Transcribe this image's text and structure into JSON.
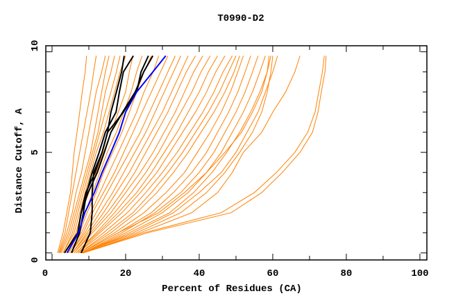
{
  "chart_data": {
    "type": "line",
    "title": "T0990-D2",
    "xlabel": "Percent of Residues (CA)",
    "ylabel": "Distance Cutoff, A",
    "xlim": [
      -1.7,
      101.9
    ],
    "ylim": [
      -0.35,
      10.3
    ],
    "xticks": [
      0,
      20,
      40,
      60,
      80,
      100
    ],
    "yticks": [
      0,
      5,
      10
    ],
    "grid": false,
    "colors": {
      "other_models": "#ff8000",
      "highlight_black": "#000000",
      "highlight_blue": "#0000ff"
    },
    "cutoffs": [
      0,
      1,
      2,
      3,
      4,
      5,
      6,
      7,
      8,
      9,
      9.8
    ],
    "orange_series": [
      [
        1.5,
        3,
        4,
        5,
        5.5,
        6,
        6.8,
        7.5,
        8.2,
        9,
        9.4
      ],
      [
        1.8,
        3.5,
        4.5,
        5.5,
        6.5,
        7.5,
        8.5,
        9.5,
        10.5,
        11.3,
        12
      ],
      [
        2,
        4,
        5.5,
        6.5,
        8,
        9,
        10,
        11,
        12,
        13.5,
        14.5
      ],
      [
        2.2,
        4.5,
        6,
        7.5,
        9,
        10.5,
        11.5,
        12.5,
        13.5,
        14.5,
        15.5
      ],
      [
        2.5,
        5,
        6.5,
        8,
        9.5,
        11,
        12.5,
        13.5,
        14.5,
        16,
        17
      ],
      [
        3,
        5.5,
        7,
        8.5,
        10,
        11.5,
        13,
        14.5,
        16,
        17.5,
        18.5
      ],
      [
        3,
        6,
        7.5,
        9,
        10.5,
        12,
        14,
        15.5,
        17,
        18.5,
        20
      ],
      [
        3.5,
        6.5,
        8,
        10,
        12,
        14,
        16,
        18,
        20,
        21,
        22
      ],
      [
        4,
        7,
        9,
        11,
        13,
        15,
        17.5,
        19.5,
        21.5,
        23,
        24.5
      ],
      [
        4,
        7.5,
        9.5,
        12,
        14,
        16.5,
        19,
        21,
        23,
        25,
        27
      ],
      [
        4.5,
        8,
        10.5,
        13,
        15.5,
        18,
        20.5,
        23,
        25,
        27.5,
        29
      ],
      [
        5,
        8.5,
        11,
        14,
        17,
        19.5,
        22,
        24.5,
        27,
        29.5,
        31.5
      ],
      [
        5,
        9,
        12,
        15,
        18,
        21,
        24,
        26.5,
        29,
        31.5,
        33.5
      ],
      [
        5.5,
        9.5,
        13,
        16.5,
        19.5,
        22.5,
        25.5,
        28,
        30.5,
        33,
        35
      ],
      [
        5.5,
        10,
        14,
        17.5,
        21,
        24,
        27,
        30,
        32.5,
        35,
        37
      ],
      [
        6,
        10.5,
        15,
        19,
        22.5,
        25.5,
        28.5,
        31.5,
        34,
        36.5,
        39
      ],
      [
        6,
        11,
        16,
        20,
        24,
        27.5,
        30.5,
        33.5,
        36,
        38.5,
        41
      ],
      [
        6.5,
        12,
        17,
        21.5,
        25.5,
        29,
        32,
        35,
        38,
        40.5,
        43
      ],
      [
        6.5,
        12.5,
        18,
        23,
        27,
        30.5,
        34,
        37,
        40,
        42.5,
        45
      ],
      [
        7,
        13,
        19,
        24,
        28.5,
        32,
        35.5,
        39,
        42,
        44.5,
        47
      ],
      [
        7,
        14,
        20.5,
        25.5,
        30,
        34,
        37.5,
        41,
        44,
        46.5,
        49
      ],
      [
        7.5,
        15,
        22,
        27,
        31.5,
        35.5,
        39,
        42.5,
        45.5,
        48,
        50
      ],
      [
        7.5,
        16,
        23,
        28.5,
        33,
        37,
        40.5,
        44,
        47,
        49.5,
        51
      ],
      [
        8,
        17,
        25,
        31,
        36,
        39.5,
        43,
        46,
        48.5,
        50.5,
        52
      ],
      [
        8,
        18,
        27,
        33,
        38,
        42,
        45,
        48,
        50.5,
        52.5,
        54
      ],
      [
        8.5,
        19,
        28,
        35,
        40,
        44,
        47,
        50,
        52.5,
        54.5,
        56
      ],
      [
        8.5,
        20,
        30,
        37,
        42,
        46,
        49,
        52,
        54.5,
        56.5,
        58
      ],
      [
        8.5,
        21,
        32,
        38.5,
        43.5,
        47.5,
        51,
        54,
        56.5,
        58.5,
        59.5
      ],
      [
        8,
        18,
        29,
        36,
        42,
        47,
        51.5,
        54.5,
        57,
        58.5,
        59
      ],
      [
        8,
        23,
        35,
        42,
        47,
        51,
        54.5,
        57,
        58.5,
        59.5,
        60
      ],
      [
        8.3,
        22,
        33,
        40,
        46,
        50,
        53,
        56,
        58,
        60,
        61.3
      ],
      [
        8.5,
        24,
        38,
        45,
        49,
        52,
        57,
        60,
        63.5,
        66,
        67.4
      ],
      [
        8.3,
        25,
        46,
        55,
        61,
        66,
        69.5,
        71.5,
        72.5,
        73.5,
        74
      ],
      [
        8.5,
        26,
        48.7,
        57,
        62.6,
        67.4,
        70.8,
        72.3,
        73.2,
        74.2,
        74.5
      ]
    ],
    "black_series": [
      [
        3.4,
        7,
        7.9,
        9.2,
        11.7,
        13.6,
        15.1,
        16,
        17.5,
        18.9,
        19.6
      ],
      [
        5.3,
        7.5,
        8.5,
        9.4,
        10.9,
        12.8,
        14.5,
        17.4,
        18.3,
        19.4,
        22.1
      ],
      [
        7.9,
        10.4,
        10.9,
        10.9,
        11.3,
        13.6,
        15.1,
        19.4,
        23,
        24.2,
        26.2
      ],
      [
        3.4,
        7,
        7.9,
        9.8,
        12.3,
        14.2,
        16,
        19.2,
        22.6,
        24.9,
        27.4
      ]
    ],
    "blue_series": [
      4.1,
      7.2,
      8.9,
      11.5,
      13.6,
      16,
      18.3,
      20,
      23,
      27.4,
      30.9
    ]
  }
}
